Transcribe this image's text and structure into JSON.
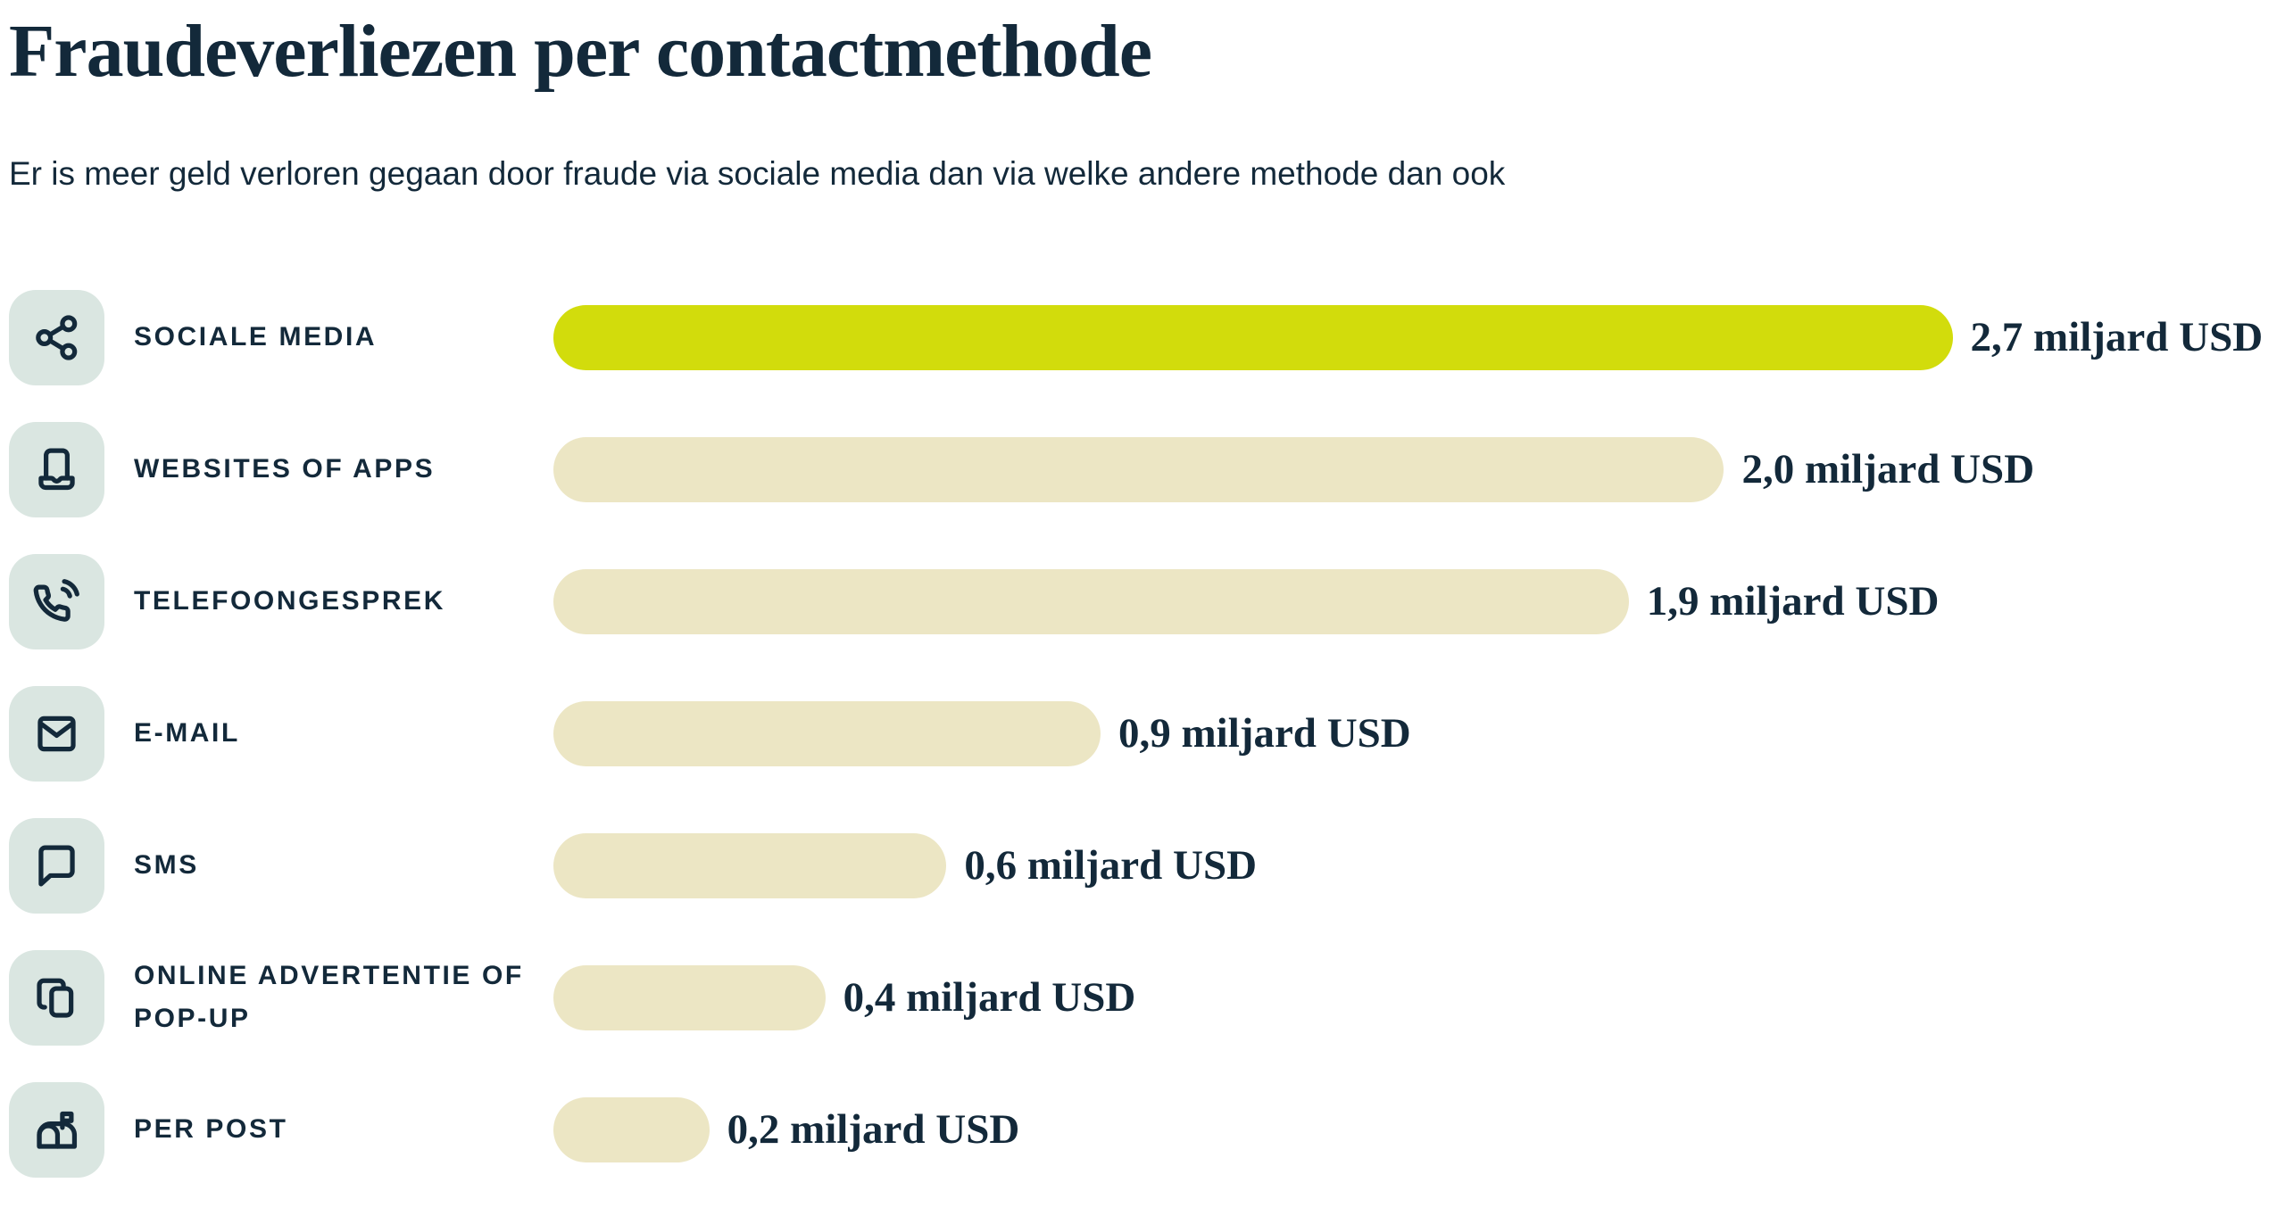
{
  "page": {
    "title": "Fraudeverliezen per contactmethode",
    "subtitle": "Er is meer geld verloren gegaan door fraude via sociale media dan via welke andere methode dan ook"
  },
  "colors": {
    "text_navy": "#13293a",
    "highlight_green": "#d2dc0c",
    "bar_beige": "#ece6c4",
    "icon_tile_bg": "#dae6e1",
    "background": "#ffffff"
  },
  "chart_data": {
    "type": "bar",
    "orientation": "horizontal",
    "title": "Fraudeverliezen per contactmethode",
    "subtitle": "Er is meer geld verloren gegaan door fraude via sociale media dan via welke andere methode dan ook",
    "unit": "miljard USD",
    "categories": [
      "SOCIALE MEDIA",
      "WEBSITES OF APPS",
      "TELEFOONGESPREK",
      "E-MAIL",
      "SMS",
      "ONLINE ADVERTENTIE OF POP-UP",
      "PER POST"
    ],
    "values": [
      2.7,
      2.0,
      1.9,
      0.9,
      0.6,
      0.4,
      0.2
    ],
    "value_labels": [
      "2,7 miljard USD",
      "2,0 miljard USD",
      "1,9 miljard USD",
      "0,9 miljard USD",
      "0,6 miljard USD",
      "0,4 miljard USD",
      "0,2 miljard USD"
    ],
    "icons": [
      "share-icon",
      "laptop-icon",
      "phone-call-icon",
      "mail-icon",
      "message-bubble-icon",
      "copy-windows-icon",
      "mailbox-icon"
    ],
    "highlighted_index": 0,
    "bar_width_pct": [
      80.8,
      67.6,
      62.1,
      31.6,
      22.7,
      15.7,
      9.0
    ],
    "legend": "none",
    "grid": false,
    "xlim": [
      0,
      3.34
    ]
  }
}
